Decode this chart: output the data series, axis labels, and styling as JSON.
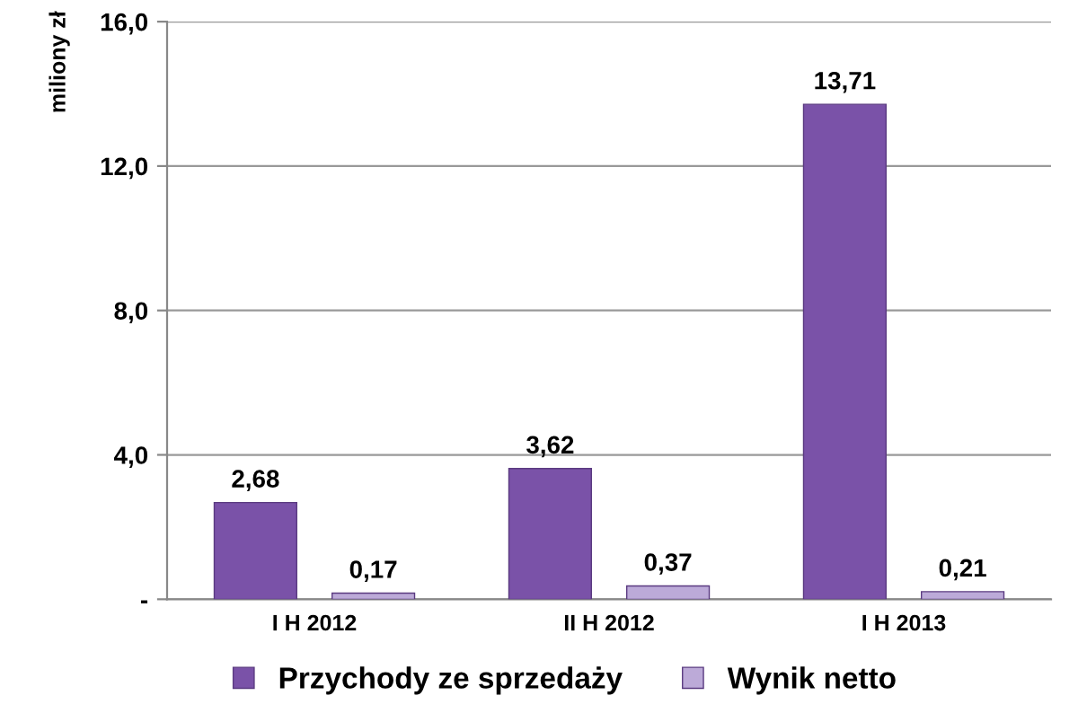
{
  "chart_data": {
    "type": "bar",
    "ylabel": "miliony zł",
    "categories": [
      "I H 2012",
      "II H 2012",
      "I H 2013"
    ],
    "series": [
      {
        "name": "Przychody ze sprzedaży",
        "color": "#7a52a8",
        "values": [
          2.68,
          3.62,
          13.71
        ],
        "value_labels": [
          "2,68",
          "3,62",
          "13,71"
        ]
      },
      {
        "name": "Wynik netto",
        "color": "#bcaad8",
        "values": [
          0.17,
          0.37,
          0.21
        ],
        "value_labels": [
          "0,17",
          "0,37",
          "0,21"
        ]
      }
    ],
    "ylim": [
      0,
      16
    ],
    "yticks": [
      {
        "value": 0,
        "label": "-"
      },
      {
        "value": 4,
        "label": "4,0"
      },
      {
        "value": 8,
        "label": "8,0"
      },
      {
        "value": 12,
        "label": "12,0"
      },
      {
        "value": 16,
        "label": "16,0"
      }
    ],
    "grid": "y",
    "legend": "bottom"
  }
}
